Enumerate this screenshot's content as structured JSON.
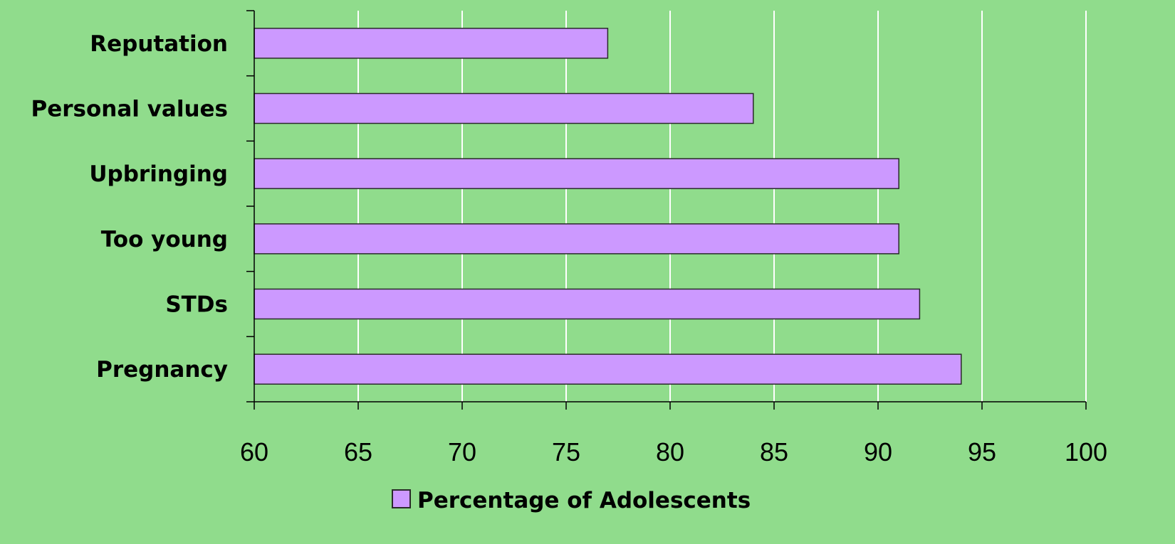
{
  "chart_data": {
    "type": "bar",
    "orientation": "horizontal",
    "categories": [
      "Reputation",
      "Personal values",
      "Upbringing",
      "Too young",
      "STDs",
      "Pregnancy"
    ],
    "series": [
      {
        "name": "Percentage of Adolescents",
        "values": [
          77,
          84,
          91,
          91,
          92,
          94
        ]
      }
    ],
    "xlim": [
      60,
      100
    ],
    "xticks": [
      "60",
      "65",
      "70",
      "75",
      "80",
      "85",
      "90",
      "95",
      "100"
    ],
    "grid": "vertical",
    "legend_placement": "bottom-center",
    "colors": {
      "background": "#90dc8c",
      "bar_fill": "#cc99ff",
      "bar_stroke": "#2a2a2a",
      "grid": "#ffffff",
      "axis": "#000000"
    }
  }
}
